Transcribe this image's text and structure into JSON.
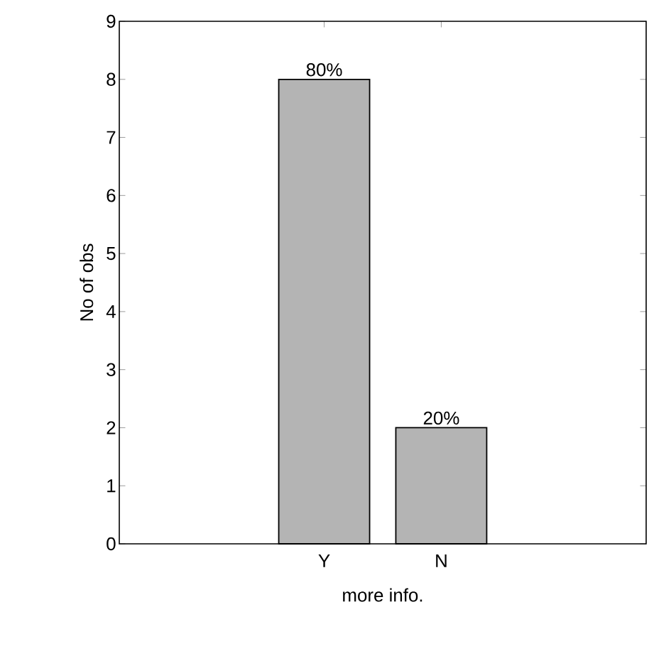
{
  "chart_data": {
    "type": "bar",
    "xlabel": "more info.",
    "ylabel": "No of obs",
    "categories": [
      "Y",
      "N"
    ],
    "values": [
      8,
      2
    ],
    "color": "#b4b4b4",
    "annotations": [
      {
        "text": "80%",
        "x": "Y",
        "y": 8
      },
      {
        "text": "20%",
        "x": "N",
        "y": 2
      }
    ],
    "ylim": [
      0,
      9
    ],
    "yticks": [
      0,
      1,
      2,
      3,
      4,
      5,
      6,
      7,
      8,
      9
    ],
    "grid": false
  }
}
